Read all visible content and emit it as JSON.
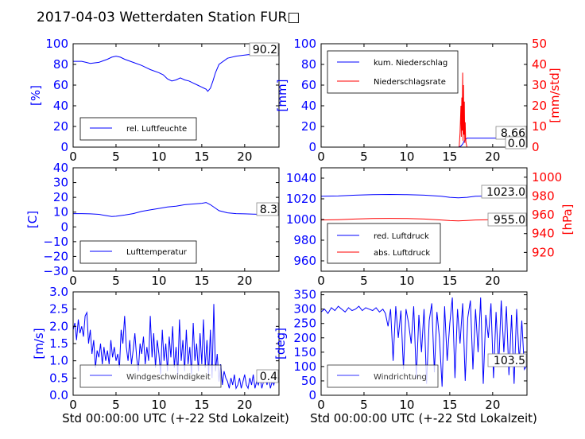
{
  "title": "2017-04-03 Wetterdaten Station FUR□",
  "colors": {
    "blue": "#0000ff",
    "red": "#ff0000",
    "black": "#000000"
  },
  "chart_data": [
    {
      "id": "humidity",
      "type": "line",
      "xlim": [
        0,
        24
      ],
      "ylim": [
        0,
        100
      ],
      "xticks": [
        "0",
        "5",
        "10",
        "15",
        "20"
      ],
      "yticks": [
        "0",
        "20",
        "40",
        "60",
        "80",
        "100"
      ],
      "ylabel": "[%]",
      "last_value": "90.2",
      "legend": {
        "placement": "lower-left",
        "entries": [
          "rel. Luftfeuchte"
        ]
      },
      "series": [
        {
          "name": "rel. Luftfeuchte",
          "color": "#0000ff",
          "x": [
            0,
            1,
            1.5,
            2,
            3,
            4,
            4.5,
            5,
            5.5,
            6,
            7,
            8,
            8.5,
            9,
            10,
            10.5,
            11,
            11.5,
            12,
            12.5,
            13,
            13.5,
            14,
            14.5,
            15,
            15.5,
            15.7,
            16,
            16.3,
            16.6,
            17,
            18,
            19,
            20,
            21,
            22,
            23,
            24
          ],
          "y": [
            83,
            83,
            82,
            81,
            82,
            85,
            87,
            88,
            87,
            85,
            82,
            79,
            77,
            75,
            72,
            70,
            66,
            64,
            65,
            67,
            65,
            64,
            62,
            60,
            58,
            56,
            54,
            57,
            64,
            72,
            80,
            86,
            88,
            89,
            90,
            90.5,
            90.3,
            90.2
          ]
        }
      ]
    },
    {
      "id": "rain",
      "type": "line",
      "xlim": [
        0,
        24
      ],
      "ylim": [
        0,
        100
      ],
      "y2lim": [
        0,
        50
      ],
      "xticks": [
        "0",
        "5",
        "10",
        "15",
        "20"
      ],
      "yticks": [
        "0",
        "20",
        "40",
        "60",
        "80",
        "100"
      ],
      "y2ticks": [
        "0",
        "10",
        "20",
        "30",
        "40",
        "50"
      ],
      "ylabel": "[mm]",
      "y2label": "[mm/std]",
      "last_values": [
        "8.66",
        "0.0"
      ],
      "legend": {
        "placement": "upper-left",
        "entries": [
          "kum. Niederschlag",
          "Niederschlagsrate"
        ]
      },
      "series": [
        {
          "name": "kum. Niederschlag",
          "color": "#0000ff",
          "axis": "left",
          "x": [
            0,
            16,
            16.3,
            16.5,
            16.7,
            17,
            24
          ],
          "y": [
            0,
            0,
            1,
            3,
            6,
            8.66,
            8.66
          ]
        },
        {
          "name": "Niederschlagsrate",
          "color": "#ff0000",
          "axis": "right",
          "x": [
            0,
            16.1,
            16.2,
            16.3,
            16.35,
            16.4,
            16.45,
            16.5,
            16.55,
            16.6,
            16.65,
            16.7,
            16.75,
            16.8,
            16.85,
            16.9,
            17,
            24
          ],
          "y": [
            0,
            0,
            7,
            20,
            5,
            24,
            8,
            36,
            3,
            30,
            6,
            22,
            2,
            12,
            4,
            2,
            0,
            0
          ]
        }
      ]
    },
    {
      "id": "temperature",
      "type": "line",
      "xlim": [
        0,
        24
      ],
      "ylim": [
        -30,
        40
      ],
      "xticks": [
        "0",
        "5",
        "10",
        "15",
        "20"
      ],
      "yticks": [
        "−30",
        "−20",
        "−10",
        "0",
        "10",
        "20",
        "30",
        "40"
      ],
      "ylabel": "[C]",
      "last_value": "8.3",
      "legend": {
        "placement": "lower-left",
        "entries": [
          "Lufttemperatur"
        ]
      },
      "series": [
        {
          "name": "Lufttemperatur",
          "color": "#0000ff",
          "x": [
            0,
            1,
            2,
            3,
            4,
            4.5,
            5,
            6,
            7,
            8,
            9,
            10,
            11,
            12,
            13,
            14,
            15,
            15.5,
            16,
            16.5,
            17,
            18,
            19,
            20,
            21,
            22,
            23,
            24
          ],
          "y": [
            9,
            9,
            8.8,
            8.5,
            7.5,
            7,
            7.2,
            8,
            9,
            10.5,
            11.5,
            12.5,
            13.5,
            14,
            15,
            15.5,
            16,
            16.5,
            15,
            13,
            11,
            9.5,
            9,
            8.8,
            8.6,
            8.5,
            8.4,
            8.3
          ]
        }
      ]
    },
    {
      "id": "pressure",
      "type": "line",
      "xlim": [
        0,
        24
      ],
      "ylim": [
        950,
        1050
      ],
      "y2lim": [
        900,
        1010
      ],
      "xticks": [
        "0",
        "5",
        "10",
        "15",
        "20"
      ],
      "yticks": [
        "960",
        "980",
        "1000",
        "1020",
        "1040"
      ],
      "y2ticks": [
        "920",
        "940",
        "960",
        "980",
        "1000"
      ],
      "y2label": "[hPa]",
      "last_values": [
        "1023.0",
        "955.0"
      ],
      "legend": {
        "placement": "lower-left",
        "entries": [
          "red. Luftdruck",
          "abs. Luftdruck"
        ]
      },
      "series": [
        {
          "name": "red. Luftdruck",
          "color": "#0000ff",
          "axis": "left",
          "x": [
            0,
            2,
            4,
            6,
            8,
            10,
            12,
            14,
            15,
            16,
            17,
            18,
            20,
            22,
            24
          ],
          "y": [
            1022.5,
            1022.8,
            1023.5,
            1024,
            1024.2,
            1024,
            1023.5,
            1022.5,
            1021.5,
            1021,
            1021.5,
            1022.5,
            1022.8,
            1023,
            1023
          ]
        },
        {
          "name": "abs. Luftdruck",
          "color": "#ff0000",
          "axis": "right",
          "x": [
            0,
            2,
            4,
            6,
            8,
            10,
            12,
            14,
            15,
            16,
            17,
            18,
            20,
            22,
            24
          ],
          "y": [
            954.5,
            954.8,
            955.5,
            956,
            956.2,
            956,
            955.5,
            954.5,
            953.8,
            953.5,
            954,
            954.5,
            954.8,
            955,
            955
          ]
        }
      ]
    },
    {
      "id": "windspeed",
      "type": "line",
      "xlim": [
        0,
        24
      ],
      "ylim": [
        0,
        3
      ],
      "xticks": [
        "0",
        "5",
        "10",
        "15",
        "20"
      ],
      "yticks": [
        "0.0",
        "0.5",
        "1.0",
        "1.5",
        "2.0",
        "2.5",
        "3.0"
      ],
      "ylabel": "[m/s]",
      "xlabel": "Std 00:00:00 UTC (+-22 Std Lokalzeit)",
      "last_value": "0.4",
      "legend": {
        "placement": "lower-left",
        "entries": [
          "Windgeschwindigkeit"
        ]
      },
      "series": [
        {
          "name": "Windgeschwindigkeit",
          "color": "#0000ff",
          "x": [
            0,
            0.2,
            0.4,
            0.6,
            0.8,
            1,
            1.2,
            1.4,
            1.6,
            1.8,
            2,
            2.2,
            2.4,
            2.6,
            2.8,
            3,
            3.2,
            3.4,
            3.6,
            3.8,
            4,
            4.2,
            4.4,
            4.6,
            4.8,
            5,
            5.2,
            5.4,
            5.6,
            5.8,
            6,
            6.2,
            6.4,
            6.6,
            6.8,
            7,
            7.2,
            7.4,
            7.6,
            7.8,
            8,
            8.2,
            8.4,
            8.6,
            8.8,
            9,
            9.2,
            9.4,
            9.6,
            9.8,
            10,
            10.2,
            10.4,
            10.6,
            10.8,
            11,
            11.2,
            11.4,
            11.6,
            11.8,
            12,
            12.2,
            12.4,
            12.6,
            12.8,
            13,
            13.2,
            13.4,
            13.6,
            13.8,
            14,
            14.2,
            14.4,
            14.6,
            14.8,
            15,
            15.2,
            15.4,
            15.6,
            15.8,
            16,
            16.2,
            16.4,
            16.6,
            16.8,
            17,
            17.2,
            17.4,
            17.6,
            17.8,
            18,
            18.2,
            18.4,
            18.6,
            18.8,
            19,
            19.2,
            19.4,
            19.6,
            19.8,
            20,
            20.2,
            20.4,
            20.6,
            20.8,
            21,
            21.2,
            21.4,
            21.6,
            21.8,
            22,
            22.2,
            22.4,
            22.6,
            22.8,
            23,
            23.2,
            23.4,
            23.6,
            23.8,
            24
          ],
          "y": [
            1.9,
            2.1,
            1.6,
            2.2,
            1.8,
            2.0,
            1.7,
            2.3,
            2.4,
            1.5,
            1.9,
            1.2,
            1.6,
            0.8,
            1.3,
            1.1,
            1.5,
            0.9,
            1.4,
            1.0,
            1.3,
            0.9,
            1.6,
            1.1,
            1.4,
            1.0,
            1.2,
            0.8,
            1.9,
            1.5,
            2.3,
            1.4,
            1.0,
            1.6,
            0.9,
            1.3,
            1.8,
            1.1,
            0.7,
            1.5,
            1.2,
            1.7,
            0.9,
            1.4,
            1.0,
            2.3,
            1.1,
            1.8,
            0.8,
            1.6,
            1.2,
            0.6,
            1.9,
            1.0,
            1.5,
            0.7,
            1.7,
            1.1,
            2.0,
            0.8,
            1.4,
            0.6,
            2.2,
            1.0,
            1.6,
            0.7,
            1.9,
            0.9,
            1.4,
            0.6,
            2.1,
            1.0,
            1.5,
            0.7,
            1.8,
            0.9,
            2.2,
            0.8,
            1.6,
            0.6,
            1.9,
            0.5,
            2.65,
            0.7,
            1.2,
            0.4,
            0.9,
            0.3,
            0.7,
            0.5,
            0.4,
            0.2,
            0.5,
            0.3,
            0.6,
            0.2,
            0.3,
            0.5,
            0.2,
            0.4,
            0.6,
            0.3,
            0.2,
            0.5,
            0.3,
            0.6,
            0.2,
            0.4,
            0.3,
            0.5,
            0.2,
            0.4,
            0.6,
            0.3,
            0.5,
            0.2,
            0.4,
            0.3,
            0.5,
            0.4,
            0.4
          ]
        }
      ]
    },
    {
      "id": "winddir",
      "type": "line",
      "xlim": [
        0,
        24
      ],
      "ylim": [
        0,
        360
      ],
      "xticks": [
        "0",
        "5",
        "10",
        "15",
        "20"
      ],
      "yticks": [
        "0",
        "50",
        "100",
        "150",
        "200",
        "250",
        "300",
        "350"
      ],
      "ylabel": "[deg]",
      "xlabel": "Std 00:00:00 UTC (+-22 Std Lokalzeit)",
      "last_value": "103.5",
      "legend": {
        "placement": "lower-left",
        "entries": [
          "Windrichtung"
        ]
      },
      "series": [
        {
          "name": "Windrichtung",
          "color": "#0000ff",
          "x": [
            0,
            0.4,
            0.8,
            1.2,
            1.6,
            2,
            2.4,
            2.8,
            3.2,
            3.6,
            4,
            4.4,
            4.8,
            5.2,
            5.6,
            6,
            6.4,
            6.8,
            7.2,
            7.5,
            7.8,
            8.1,
            8.4,
            8.7,
            9,
            9.3,
            9.6,
            9.9,
            10.2,
            10.5,
            10.8,
            11.1,
            11.4,
            11.7,
            12,
            12.3,
            12.6,
            12.9,
            13.2,
            13.5,
            13.8,
            14.1,
            14.4,
            14.7,
            15,
            15.3,
            15.6,
            15.9,
            16.2,
            16.5,
            16.8,
            17.1,
            17.4,
            17.7,
            18,
            18.3,
            18.6,
            18.9,
            19.2,
            19.5,
            19.8,
            20.1,
            20.4,
            20.7,
            21,
            21.3,
            21.6,
            21.9,
            22.2,
            22.5,
            22.8,
            23.1,
            23.4,
            23.7,
            24
          ],
          "y": [
            290,
            300,
            285,
            305,
            295,
            310,
            300,
            290,
            305,
            295,
            300,
            310,
            295,
            305,
            300,
            295,
            305,
            290,
            300,
            285,
            240,
            300,
            120,
            310,
            200,
            295,
            90,
            300,
            250,
            180,
            310,
            60,
            280,
            150,
            300,
            40,
            260,
            320,
            80,
            290,
            200,
            30,
            310,
            120,
            250,
            340,
            60,
            300,
            180,
            320,
            50,
            270,
            330,
            90,
            300,
            150,
            340,
            40,
            280,
            200,
            320,
            60,
            290,
            100,
            330,
            150,
            310,
            70,
            280,
            40,
            300,
            120,
            260,
            90,
            103.5
          ]
        }
      ]
    }
  ]
}
